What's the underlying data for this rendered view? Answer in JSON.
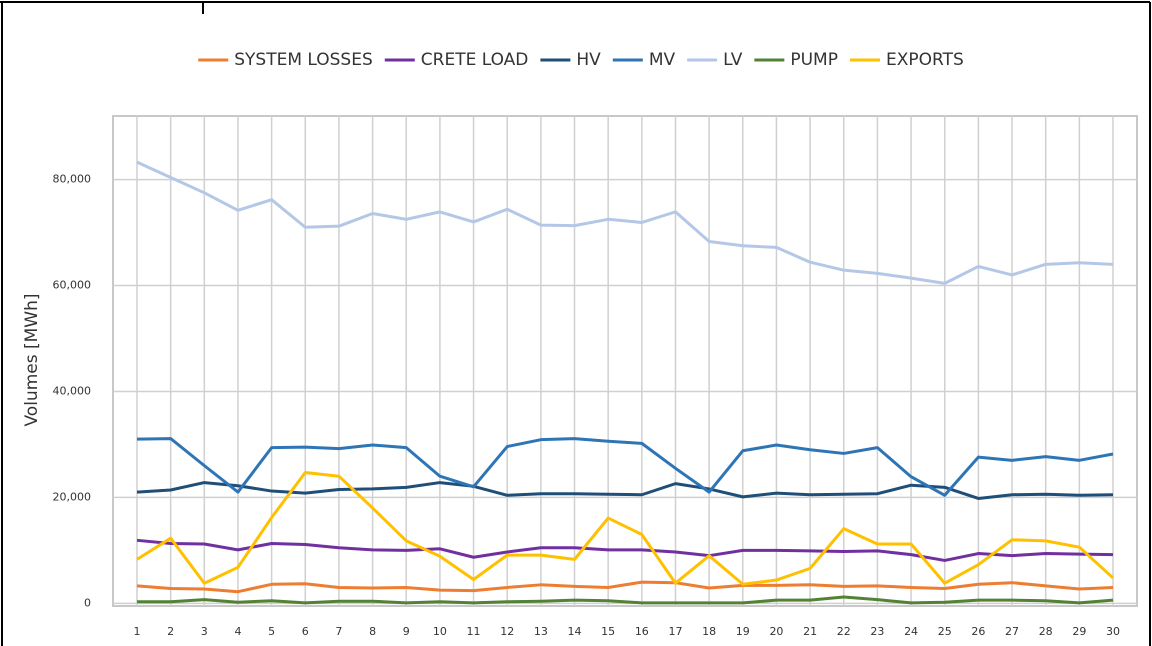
{
  "chart_data": {
    "type": "line",
    "y_label": "Volumes [MWh]",
    "categories": [
      "1",
      "2",
      "3",
      "4",
      "5",
      "6",
      "7",
      "8",
      "9",
      "10",
      "11",
      "12",
      "13",
      "14",
      "15",
      "16",
      "17",
      "18",
      "19",
      "20",
      "21",
      "22",
      "23",
      "24",
      "25",
      "26",
      "27",
      "28",
      "29",
      "30"
    ],
    "ylim": [
      -500,
      92000
    ],
    "yticks": [
      0,
      {
        "value": 20000,
        "label": "20,000"
      },
      {
        "value": 40000,
        "label": "40,000"
      },
      {
        "value": 60000,
        "label": "60,000"
      },
      {
        "value": 80000,
        "label": "80,000"
      }
    ],
    "grid": true,
    "legend": "top",
    "series": [
      {
        "name": "SYSTEM LOSSES",
        "color": "#ed7d31",
        "values": [
          3300,
          2800,
          2700,
          2200,
          3600,
          3700,
          3000,
          2900,
          3000,
          2500,
          2400,
          3000,
          3500,
          3200,
          3000,
          4000,
          3900,
          2900,
          3400,
          3400,
          3500,
          3200,
          3300,
          3000,
          2800,
          3600,
          3900,
          3300,
          2700,
          3000
        ]
      },
      {
        "name": "CRETE LOAD",
        "color": "#7030a0",
        "values": [
          11900,
          11300,
          11200,
          10100,
          11300,
          11100,
          10500,
          10100,
          10000,
          10300,
          8700,
          9700,
          10500,
          10500,
          10100,
          10100,
          9700,
          9000,
          10000,
          10000,
          9900,
          9800,
          9900,
          9200,
          8100,
          9400,
          9000,
          9400,
          9300,
          9200
        ]
      },
      {
        "name": "HV",
        "color": "#1f4e79",
        "values": [
          21000,
          21400,
          22800,
          22200,
          21200,
          20800,
          21500,
          21600,
          21900,
          22800,
          22100,
          20400,
          20700,
          20700,
          20600,
          20500,
          22600,
          21600,
          20100,
          20800,
          20500,
          20600,
          20700,
          22300,
          21900,
          19800,
          20500,
          20600,
          20400,
          20500
        ]
      },
      {
        "name": "MV",
        "color": "#2e75b6",
        "values": [
          31000,
          31100,
          26000,
          21000,
          29400,
          29500,
          29200,
          29900,
          29400,
          24000,
          22000,
          29600,
          30900,
          31100,
          30600,
          30200,
          25500,
          21000,
          28800,
          29900,
          29000,
          28300,
          29400,
          23900,
          20400,
          27600,
          27000,
          27700,
          27000,
          28200
        ]
      },
      {
        "name": "LV",
        "color": "#b4c7e7",
        "values": [
          83300,
          80400,
          77500,
          74200,
          76200,
          71000,
          71200,
          73600,
          72500,
          73900,
          72000,
          74400,
          71400,
          71300,
          72500,
          71900,
          73900,
          68300,
          67500,
          67200,
          64400,
          62900,
          62300,
          61400,
          60400,
          63600,
          62000,
          64000,
          64300,
          64000
        ]
      },
      {
        "name": "PUMP",
        "color": "#548235",
        "values": [
          300,
          300,
          700,
          200,
          500,
          100,
          400,
          400,
          100,
          300,
          100,
          300,
          400,
          600,
          500,
          100,
          100,
          100,
          100,
          600,
          600,
          1200,
          700,
          100,
          200,
          600,
          600,
          500,
          100,
          600
        ]
      },
      {
        "name": "EXPORTS",
        "color": "#ffc000",
        "values": [
          8300,
          12300,
          3800,
          6800,
          16200,
          24700,
          24000,
          18000,
          11800,
          8900,
          4500,
          9100,
          9100,
          8300,
          16100,
          13000,
          3800,
          9000,
          3600,
          4400,
          6600,
          14100,
          11200,
          11200,
          3800,
          7300,
          12000,
          11800,
          10600,
          4800
        ]
      }
    ]
  }
}
